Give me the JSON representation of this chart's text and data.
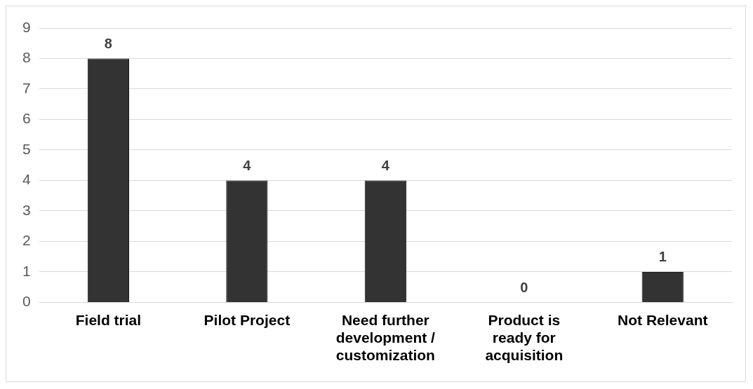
{
  "chart_data": {
    "type": "bar",
    "categories": [
      "Field trial",
      "Pilot Project",
      "Need further development / customization",
      "Product is ready for acquisition",
      "Not Relevant"
    ],
    "values": [
      8,
      4,
      4,
      0,
      1
    ],
    "color": "#333333",
    "ylim": [
      0,
      9
    ],
    "yticks": [
      0,
      1,
      2,
      3,
      4,
      5,
      6,
      7,
      8,
      9
    ],
    "grid": "y",
    "data_labels": true,
    "legend": false
  }
}
